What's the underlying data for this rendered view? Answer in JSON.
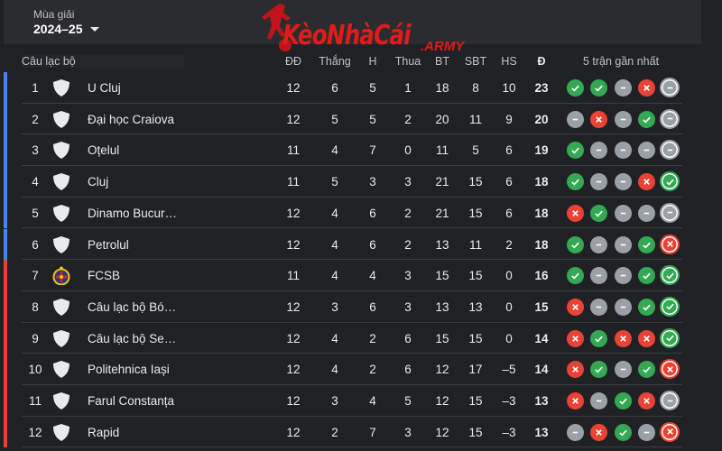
{
  "season": {
    "label": "Mùa giải",
    "value": "2024–25"
  },
  "watermark": {
    "text": "KèoNhàCái",
    "sub": ".ARMY"
  },
  "headers": {
    "club": "Câu lạc bộ",
    "played": "ĐĐ",
    "won": "Thắng",
    "drawn": "H",
    "lost": "Thua",
    "gf": "BT",
    "ga": "SBT",
    "gd": "HS",
    "pts": "Đ",
    "form": "5 trận gần nhất"
  },
  "colors": {
    "win": "#34a853",
    "draw": "#9aa0a6",
    "loss": "#ea4335",
    "championship_zone": "#4285f4",
    "relegation_zone": "#ea4335"
  },
  "rows": [
    {
      "rank": "1",
      "team": "U Cluj",
      "played": "12",
      "won": "6",
      "drawn": "5",
      "lost": "1",
      "gf": "18",
      "ga": "8",
      "gd": "10",
      "pts": "23",
      "zone": "championship",
      "crest": "shield-icon",
      "form": [
        "W",
        "W",
        "D",
        "L",
        "D"
      ]
    },
    {
      "rank": "2",
      "team": "Đại học Craiova",
      "played": "12",
      "won": "5",
      "drawn": "5",
      "lost": "2",
      "gf": "20",
      "ga": "11",
      "gd": "9",
      "pts": "20",
      "zone": "championship",
      "crest": "shield-icon",
      "form": [
        "D",
        "L",
        "D",
        "W",
        "D"
      ]
    },
    {
      "rank": "3",
      "team": "Oțelul",
      "played": "11",
      "won": "4",
      "drawn": "7",
      "lost": "0",
      "gf": "11",
      "ga": "5",
      "gd": "6",
      "pts": "19",
      "zone": "championship",
      "crest": "shield-icon",
      "form": [
        "W",
        "D",
        "D",
        "D",
        "D"
      ]
    },
    {
      "rank": "4",
      "team": "Cluj",
      "played": "11",
      "won": "5",
      "drawn": "3",
      "lost": "3",
      "gf": "21",
      "ga": "15",
      "gd": "6",
      "pts": "18",
      "zone": "championship",
      "crest": "shield-icon",
      "form": [
        "W",
        "D",
        "D",
        "L",
        "W"
      ]
    },
    {
      "rank": "5",
      "team": "Dinamo Bucur…",
      "played": "12",
      "won": "4",
      "drawn": "6",
      "lost": "2",
      "gf": "21",
      "ga": "15",
      "gd": "6",
      "pts": "18",
      "zone": "championship",
      "crest": "shield-icon",
      "form": [
        "L",
        "W",
        "D",
        "D",
        "D"
      ]
    },
    {
      "rank": "6",
      "team": "Petrolul",
      "played": "12",
      "won": "4",
      "drawn": "6",
      "lost": "2",
      "gf": "13",
      "ga": "11",
      "gd": "2",
      "pts": "18",
      "zone": "championship",
      "crest": "shield-icon",
      "form": [
        "W",
        "D",
        "D",
        "W",
        "L"
      ]
    },
    {
      "rank": "7",
      "team": "FCSB",
      "played": "11",
      "won": "4",
      "drawn": "4",
      "lost": "3",
      "gf": "15",
      "ga": "15",
      "gd": "0",
      "pts": "16",
      "zone": "relegation",
      "crest": "fcsb-crest-icon",
      "form": [
        "W",
        "D",
        "D",
        "W",
        "W"
      ]
    },
    {
      "rank": "8",
      "team": "Câu lạc bộ Bó…",
      "played": "12",
      "won": "3",
      "drawn": "6",
      "lost": "3",
      "gf": "13",
      "ga": "13",
      "gd": "0",
      "pts": "15",
      "zone": "relegation",
      "crest": "shield-icon",
      "form": [
        "L",
        "D",
        "D",
        "W",
        "W"
      ]
    },
    {
      "rank": "9",
      "team": "Câu lạc bộ Se…",
      "played": "12",
      "won": "4",
      "drawn": "2",
      "lost": "6",
      "gf": "15",
      "ga": "15",
      "gd": "0",
      "pts": "14",
      "zone": "relegation",
      "crest": "shield-icon",
      "form": [
        "L",
        "W",
        "L",
        "L",
        "W"
      ]
    },
    {
      "rank": "10",
      "team": "Politehnica Iași",
      "played": "12",
      "won": "4",
      "drawn": "2",
      "lost": "6",
      "gf": "12",
      "ga": "17",
      "gd": "–5",
      "pts": "14",
      "zone": "relegation",
      "crest": "shield-icon",
      "form": [
        "L",
        "W",
        "D",
        "W",
        "L"
      ]
    },
    {
      "rank": "11",
      "team": "Farul Constanța",
      "played": "12",
      "won": "3",
      "drawn": "4",
      "lost": "5",
      "gf": "12",
      "ga": "15",
      "gd": "–3",
      "pts": "13",
      "zone": "relegation",
      "crest": "shield-icon",
      "form": [
        "L",
        "D",
        "W",
        "L",
        "D"
      ]
    },
    {
      "rank": "12",
      "team": "Rapid",
      "played": "12",
      "won": "2",
      "drawn": "7",
      "lost": "3",
      "gf": "12",
      "ga": "15",
      "gd": "–3",
      "pts": "13",
      "zone": "relegation",
      "crest": "shield-icon",
      "form": [
        "D",
        "L",
        "W",
        "D",
        "L"
      ]
    }
  ]
}
